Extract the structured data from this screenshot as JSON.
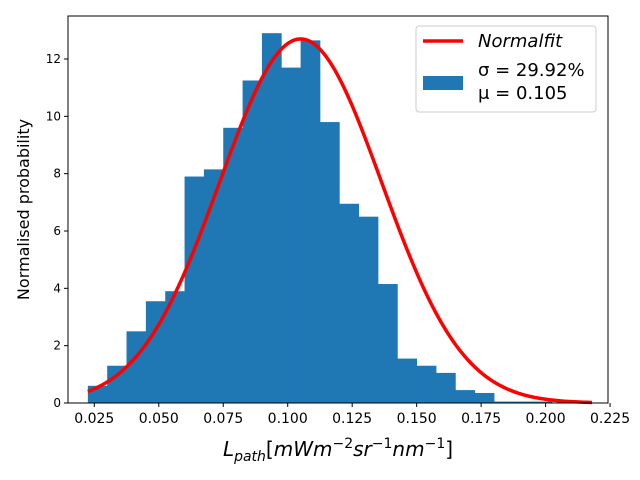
{
  "chart_data": {
    "type": "bar",
    "xlabel_math": {
      "base": "L",
      "sub": "path",
      "open": "[",
      "parts": [
        {
          "text": "mWm"
        },
        {
          "sup": "−2"
        },
        {
          "text": "sr"
        },
        {
          "sup": "−1"
        },
        {
          "text": "nm"
        },
        {
          "sup": "−1"
        }
      ],
      "close": "]"
    },
    "ylabel": "Normalised probability",
    "xlim": [
      0.0148,
      0.2242
    ],
    "ylim": [
      0,
      13.5
    ],
    "xticks": [
      0.025,
      0.05,
      0.075,
      0.1,
      0.125,
      0.15,
      0.175,
      0.2,
      0.225
    ],
    "xtick_labels": [
      "0.025",
      "0.050",
      "0.075",
      "0.100",
      "0.125",
      "0.150",
      "0.175",
      "0.200",
      "0.225"
    ],
    "yticks": [
      0,
      2,
      4,
      6,
      8,
      10,
      12
    ],
    "ytick_labels": [
      "0",
      "2",
      "4",
      "6",
      "8",
      "10",
      "12"
    ],
    "histogram": {
      "bin_edges": [
        0.0225,
        0.03,
        0.0375,
        0.045,
        0.0525,
        0.06,
        0.0675,
        0.075,
        0.0825,
        0.09,
        0.0975,
        0.105,
        0.1125,
        0.12,
        0.1275,
        0.135,
        0.1425,
        0.15,
        0.1575,
        0.165,
        0.1725,
        0.18,
        0.1875,
        0.195,
        0.2025
      ],
      "values": [
        0.6,
        1.3,
        2.5,
        3.55,
        3.9,
        7.9,
        8.15,
        9.6,
        11.25,
        12.9,
        11.7,
        12.65,
        9.8,
        6.95,
        6.5,
        4.15,
        1.55,
        1.3,
        1.05,
        0.45,
        0.35,
        0.05,
        0.05,
        0.05
      ],
      "color": "#1f77b4"
    },
    "fit": {
      "mu": 0.105,
      "sigma_abs": 0.0314,
      "peak": 12.7,
      "x_range": [
        0.0225,
        0.218
      ],
      "color": "#ff0000"
    },
    "legend": {
      "position": "top-right",
      "fit_label": "Normalfit",
      "hist_label_line1": "σ = 29.92%",
      "hist_label_line2": "μ = 0.105"
    }
  }
}
